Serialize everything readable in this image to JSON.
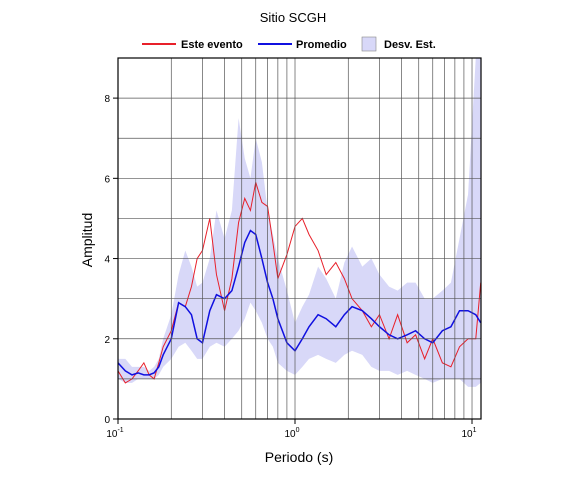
{
  "chart_data": {
    "type": "line",
    "title": "Sitio SCGH",
    "x_label": "Periodo (s)",
    "y_label": "Amplitud",
    "x_scale": "log",
    "grid": true,
    "x": [
      0.1,
      0.11,
      0.12,
      0.13,
      0.14,
      0.15,
      0.16,
      0.17,
      0.18,
      0.2,
      0.22,
      0.24,
      0.26,
      0.28,
      0.3,
      0.33,
      0.36,
      0.4,
      0.44,
      0.48,
      0.52,
      0.56,
      0.6,
      0.65,
      0.7,
      0.75,
      0.8,
      0.9,
      1.0,
      1.1,
      1.2,
      1.35,
      1.5,
      1.7,
      1.9,
      2.1,
      2.4,
      2.7,
      3.0,
      3.4,
      3.8,
      4.3,
      4.8,
      5.4,
      6.0,
      6.8,
      7.6,
      8.5,
      9.5,
      10.5,
      11.2
    ],
    "series": [
      {
        "name": "Este evento",
        "color": "#e8202a",
        "values": [
          1.2,
          0.9,
          1.0,
          1.2,
          1.4,
          1.1,
          1.0,
          1.4,
          1.8,
          2.2,
          2.9,
          2.8,
          3.3,
          4.0,
          4.2,
          5.0,
          3.6,
          2.7,
          3.5,
          4.9,
          5.5,
          5.2,
          5.9,
          5.4,
          5.3,
          4.4,
          3.5,
          4.1,
          4.8,
          5.0,
          4.6,
          4.2,
          3.6,
          3.9,
          3.5,
          3.0,
          2.7,
          2.3,
          2.6,
          2.0,
          2.6,
          1.9,
          2.1,
          1.5,
          2.0,
          1.4,
          1.3,
          1.8,
          2.0,
          2.0,
          3.4
        ]
      },
      {
        "name": "Promedio",
        "color": "#1010e0",
        "values": [
          1.4,
          1.2,
          1.1,
          1.15,
          1.1,
          1.1,
          1.15,
          1.3,
          1.6,
          2.0,
          2.9,
          2.8,
          2.6,
          2.0,
          1.9,
          2.7,
          3.1,
          3.0,
          3.2,
          3.8,
          4.4,
          4.7,
          4.6,
          4.0,
          3.4,
          3.0,
          2.5,
          1.9,
          1.7,
          2.0,
          2.3,
          2.6,
          2.5,
          2.3,
          2.6,
          2.8,
          2.7,
          2.5,
          2.3,
          2.1,
          2.0,
          2.1,
          2.2,
          2.0,
          1.9,
          2.2,
          2.3,
          2.7,
          2.7,
          2.6,
          2.4
        ]
      }
    ],
    "band": {
      "name": "Desv. Est.",
      "color": "#d8d8f8",
      "lower": [
        1.0,
        0.9,
        0.9,
        1.0,
        1.0,
        1.0,
        1.0,
        1.1,
        1.3,
        1.5,
        1.8,
        1.9,
        1.7,
        1.5,
        1.5,
        1.8,
        1.9,
        1.8,
        2.0,
        2.2,
        2.5,
        2.9,
        2.7,
        2.4,
        2.0,
        1.8,
        1.4,
        1.2,
        1.1,
        1.3,
        1.5,
        1.6,
        1.5,
        1.4,
        1.6,
        1.7,
        1.6,
        1.3,
        1.2,
        1.2,
        1.1,
        1.2,
        1.1,
        1.0,
        0.9,
        1.0,
        1.0,
        1.0,
        0.8,
        0.8,
        0.9
      ],
      "upper": [
        1.5,
        1.5,
        1.3,
        1.3,
        1.3,
        1.2,
        1.3,
        1.5,
        2.0,
        2.6,
        3.6,
        4.2,
        3.8,
        3.3,
        3.4,
        4.0,
        5.2,
        4.5,
        5.2,
        7.5,
        6.5,
        6.0,
        7.0,
        6.4,
        5.2,
        4.6,
        4.0,
        3.2,
        2.4,
        2.8,
        3.1,
        3.8,
        3.5,
        3.0,
        3.9,
        4.3,
        3.8,
        4.0,
        3.6,
        3.3,
        3.2,
        3.4,
        3.4,
        3.0,
        3.0,
        3.2,
        3.4,
        4.5,
        5.6,
        9.0,
        9.0
      ]
    },
    "xlim": [
      0.1,
      11.24
    ],
    "ylim": [
      0,
      9
    ],
    "xticks": [
      {
        "value": 0.1,
        "label": "10",
        "exponent": "-1"
      },
      {
        "value": 1,
        "label": "10",
        "exponent": "0"
      },
      {
        "value": 10,
        "label": "10",
        "exponent": "1"
      }
    ],
    "x_minor_ticks": [
      0.2,
      0.3,
      0.4,
      0.5,
      0.6,
      0.7,
      0.8,
      0.9,
      2,
      3,
      4,
      5,
      6,
      7,
      8,
      9
    ],
    "yticks": [
      0,
      2,
      4,
      6,
      8
    ],
    "y_minor_ticks": [
      1,
      3,
      5,
      7
    ]
  }
}
